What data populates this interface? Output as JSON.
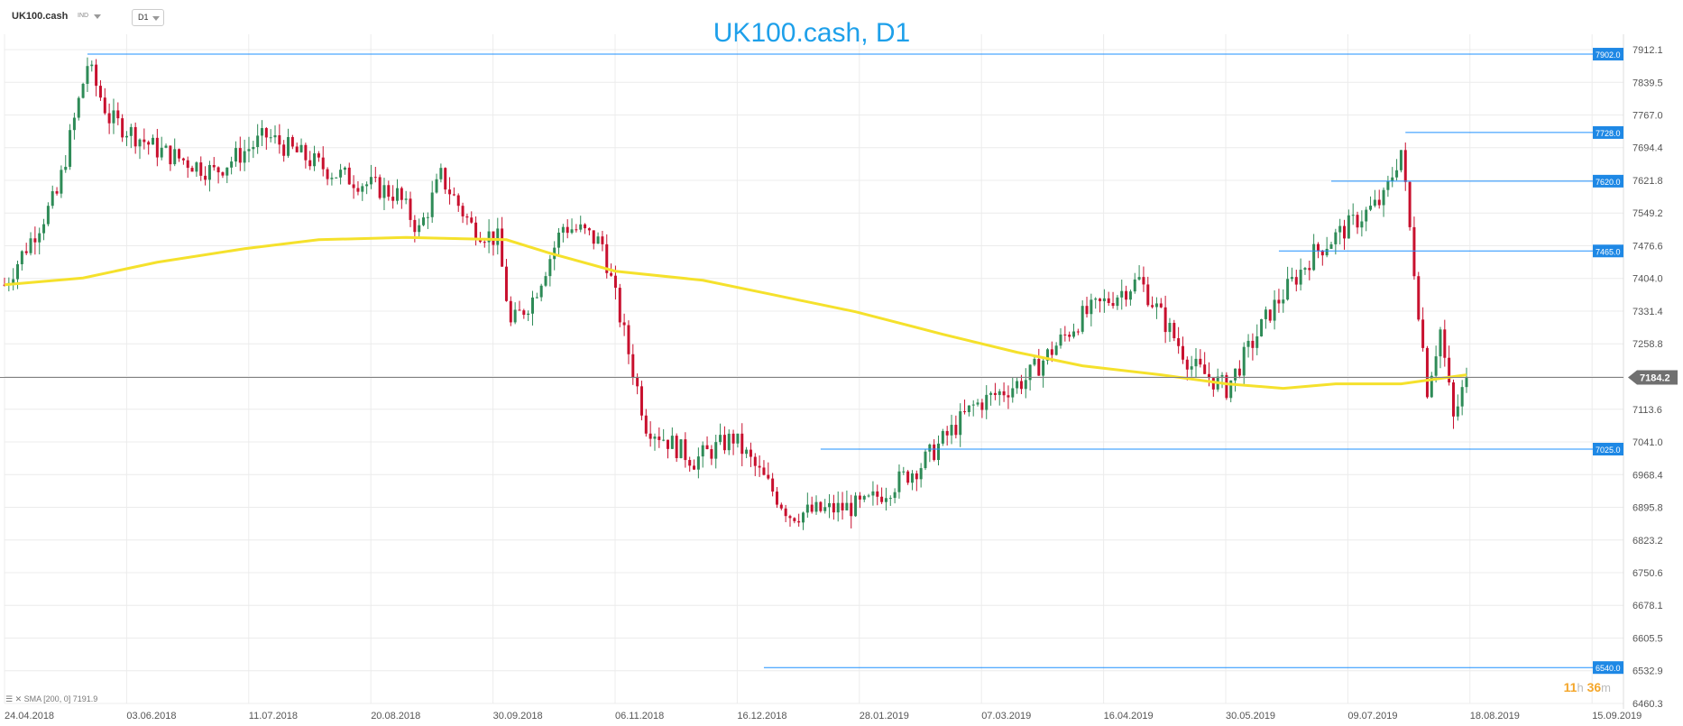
{
  "toolbar": {
    "symbol": "UK100.cash",
    "indicator_label": "IND",
    "timeframe": "D1"
  },
  "colors": {
    "up": "#2e8b57",
    "down": "#c8102e",
    "sma": "#f5e12c",
    "level": "#1e90ff",
    "level_tag": "#1e88e5",
    "price_tag": "#707070",
    "grid": "#ececec",
    "current_line": "#808080"
  },
  "chart_data": {
    "type": "candlestick",
    "title": "UK100.cash, D1",
    "ylim": [
      6460.3,
      7960
    ],
    "y_ticks": [
      "7912.1",
      "7839.5",
      "7767.0",
      "7694.4",
      "7621.8",
      "7549.2",
      "7476.6",
      "7404.0",
      "7331.4",
      "7258.8",
      "7186.2",
      "7113.6",
      "7041.0",
      "6968.4",
      "6895.8",
      "6823.2",
      "6750.6",
      "6678.1",
      "6605.5",
      "6532.9",
      "6460.3"
    ],
    "x_ticks": [
      "24.04.2018",
      "03.06.2018",
      "11.07.2018",
      "20.08.2018",
      "30.09.2018",
      "06.11.2018",
      "16.12.2018",
      "28.01.2019",
      "07.03.2019",
      "16.04.2019",
      "30.05.2019",
      "09.07.2019",
      "18.08.2019",
      "15.09.2019"
    ],
    "current_price": 7184.2,
    "indicator": {
      "name": "SMA",
      "params": "[200, 0]",
      "value": 7191.9
    },
    "levels": [
      {
        "label": "7902.0",
        "value": 7902.0,
        "from_bar": 19
      },
      {
        "label": "7728.0",
        "value": 7728.0,
        "from_bar": 321
      },
      {
        "label": "7620.0",
        "value": 7620.0,
        "from_bar": 304
      },
      {
        "label": "7465.0",
        "value": 7465.0,
        "from_bar": 292
      },
      {
        "label": "7025.0",
        "value": 7025.0,
        "from_bar": 187
      },
      {
        "label": "6540.0",
        "value": 6540.0,
        "from_bar": 174
      }
    ],
    "bars": 336,
    "close_path": [
      [
        0,
        7390
      ],
      [
        12,
        7590
      ],
      [
        19,
        7880
      ],
      [
        24,
        7760
      ],
      [
        35,
        7690
      ],
      [
        48,
        7640
      ],
      [
        60,
        7720
      ],
      [
        75,
        7640
      ],
      [
        90,
        7590
      ],
      [
        95,
        7510
      ],
      [
        100,
        7630
      ],
      [
        107,
        7520
      ],
      [
        113,
        7490
      ],
      [
        116,
        7300
      ],
      [
        121,
        7360
      ],
      [
        128,
        7520
      ],
      [
        132,
        7510
      ],
      [
        137,
        7480
      ],
      [
        147,
        7080
      ],
      [
        158,
        7000
      ],
      [
        167,
        7050
      ],
      [
        180,
        6880
      ],
      [
        197,
        6900
      ],
      [
        210,
        6990
      ],
      [
        222,
        7120
      ],
      [
        234,
        7180
      ],
      [
        247,
        7320
      ],
      [
        260,
        7400
      ],
      [
        272,
        7210
      ],
      [
        280,
        7160
      ],
      [
        290,
        7330
      ],
      [
        300,
        7460
      ],
      [
        316,
        7580
      ],
      [
        320,
        7690
      ],
      [
        326,
        7160
      ],
      [
        329,
        7290
      ],
      [
        332,
        7090
      ],
      [
        335,
        7184.2
      ]
    ],
    "sma_path": [
      [
        0,
        7390
      ],
      [
        18,
        7405
      ],
      [
        35,
        7440
      ],
      [
        55,
        7470
      ],
      [
        72,
        7490
      ],
      [
        92,
        7495
      ],
      [
        115,
        7490
      ],
      [
        125,
        7460
      ],
      [
        140,
        7420
      ],
      [
        160,
        7400
      ],
      [
        175,
        7370
      ],
      [
        195,
        7330
      ],
      [
        215,
        7280
      ],
      [
        232,
        7240
      ],
      [
        247,
        7210
      ],
      [
        265,
        7190
      ],
      [
        280,
        7170
      ],
      [
        293,
        7160
      ],
      [
        305,
        7170
      ],
      [
        320,
        7170
      ],
      [
        335,
        7190
      ]
    ]
  }
}
